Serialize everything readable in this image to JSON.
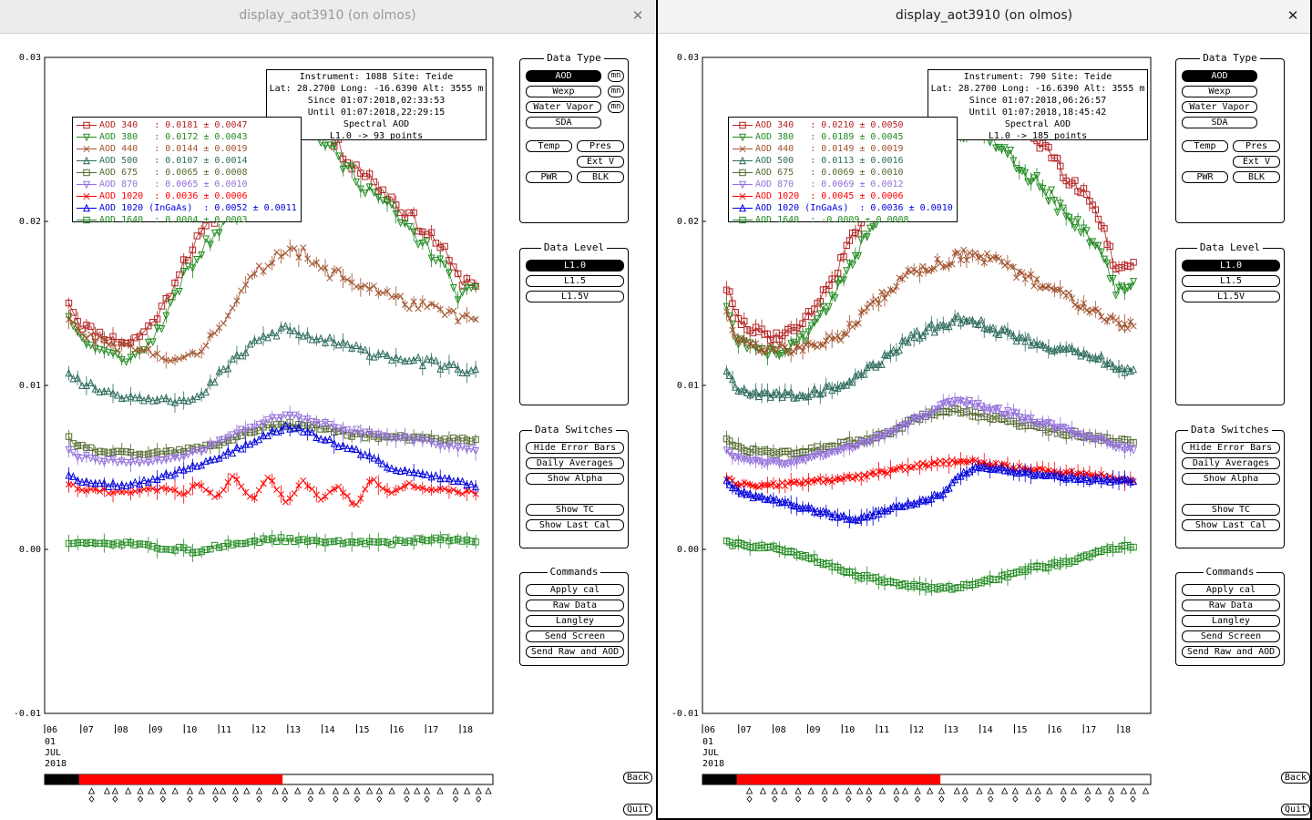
{
  "windows": [
    {
      "id": "left",
      "title": "display_aot3910 (on olmos)",
      "info": {
        "line1": "Instrument: 1088 Site: Teide",
        "line2": "Lat: 28.2700 Long: -16.6390 Alt: 3555 m",
        "line3": "Since 01:07:2018,02:33:53",
        "line4": "Until 01:07:2018,22:29:15",
        "line5": "Spectral AOD",
        "line6": "L1.0 -> 93 points"
      },
      "legend": [
        {
          "label": "AOD 340   : 0.0181 ± 0.0047",
          "color": "#b22222",
          "marker": "square"
        },
        {
          "label": "AOD 380   : 0.0172 ± 0.0043",
          "color": "#228b22",
          "marker": "tri-down"
        },
        {
          "label": "AOD 440   : 0.0144 ± 0.0019",
          "color": "#a0522d",
          "marker": "x"
        },
        {
          "label": "AOD 500   : 0.0107 ± 0.0014",
          "color": "#2e6b5e",
          "marker": "tri-up"
        },
        {
          "label": "AOD 675   : 0.0065 ± 0.0008",
          "color": "#556b2f",
          "marker": "square"
        },
        {
          "label": "AOD 870   : 0.0065 ± 0.0010",
          "color": "#9370db",
          "marker": "tri-down"
        },
        {
          "label": "AOD 1020  : 0.0036 ± 0.0006",
          "color": "#ff0000",
          "marker": "x"
        },
        {
          "label": "AOD 1020 (InGaAs)  : 0.0052 ± 0.0011",
          "color": "#0000dd",
          "marker": "tri-up"
        },
        {
          "label": "AOD 1640  : 0.0004 ± 0.0003",
          "color": "#228b22",
          "marker": "square"
        }
      ]
    },
    {
      "id": "right",
      "title": "display_aot3910 (on olmos)",
      "info": {
        "line1": "Instrument: 790 Site: Teide",
        "line2": "Lat: 28.2700 Long: -16.6390 Alt: 3555 m",
        "line3": "Since 01:07:2018,06:26:57",
        "line4": "Until 01:07:2018,18:45:42",
        "line5": "Spectral AOD",
        "line6": "L1.0 -> 185 points"
      },
      "legend": [
        {
          "label": "AOD 340   : 0.0210 ± 0.0050",
          "color": "#b22222",
          "marker": "square"
        },
        {
          "label": "AOD 380   : 0.0189 ± 0.0045",
          "color": "#228b22",
          "marker": "tri-down"
        },
        {
          "label": "AOD 440   : 0.0149 ± 0.0019",
          "color": "#a0522d",
          "marker": "x"
        },
        {
          "label": "AOD 500   : 0.0113 ± 0.0016",
          "color": "#2e6b5e",
          "marker": "tri-up"
        },
        {
          "label": "AOD 675   : 0.0069 ± 0.0010",
          "color": "#556b2f",
          "marker": "square"
        },
        {
          "label": "AOD 870   : 0.0069 ± 0.0012",
          "color": "#9370db",
          "marker": "tri-down"
        },
        {
          "label": "AOD 1020  : 0.0045 ± 0.0006",
          "color": "#ff0000",
          "marker": "x"
        },
        {
          "label": "AOD 1020 (InGaAs)  : 0.0036 ± 0.0010",
          "color": "#0000dd",
          "marker": "tri-up"
        },
        {
          "label": "AOD 1640  : -0.0009 ± 0.0008",
          "color": "#228b22",
          "marker": "square"
        }
      ]
    }
  ],
  "axes": {
    "y_ticks": [
      "0.03",
      "0.02",
      "0.01",
      "0.00",
      "-0.01"
    ],
    "ylim": [
      -0.01,
      0.03
    ],
    "x_ticks_left": [
      "06",
      "07",
      "08",
      "09",
      "10",
      "11",
      "12",
      "13",
      "14",
      "15",
      "16",
      "17",
      "18"
    ],
    "x_ticks_right": [
      "06",
      "07",
      "08",
      "09",
      "10",
      "11",
      "12",
      "13",
      "14",
      "15",
      "16",
      "17",
      "18"
    ],
    "date_label": [
      "01",
      "JUL",
      "2018"
    ]
  },
  "panels": {
    "data_type": {
      "title": "Data Type",
      "buttons": [
        "AOD",
        "Wexp",
        "Water Vapor",
        "SDA",
        "Temp",
        "Pres",
        "Ext V",
        "PWR",
        "BLK"
      ],
      "mini": "mn",
      "selected": "AOD"
    },
    "data_level": {
      "title": "Data Level",
      "buttons": [
        "L1.0",
        "L1.5",
        "L1.5V"
      ],
      "selected": "L1.0"
    },
    "data_switches": {
      "title": "Data Switches",
      "buttons": [
        "Hide Error Bars",
        "Daily Averages",
        "Show Alpha",
        "Show TC",
        "Show Last Cal"
      ]
    },
    "commands": {
      "title": "Commands",
      "buttons": [
        "Apply cal",
        "Raw Data",
        "Langley",
        "Send Screen",
        "Send Raw and AOD"
      ]
    },
    "back_label": "Back",
    "quit_label": "Quit"
  },
  "chart_data": [
    {
      "type": "scatter",
      "title": "Spectral AOD",
      "xlabel": "",
      "ylabel": "",
      "ylim": [
        -0.01,
        0.03
      ],
      "x_hours": [
        6.7,
        7.0,
        7.5,
        8.0,
        8.5,
        9.0,
        9.5,
        10.0,
        10.5,
        11.0,
        11.5,
        12.0,
        12.5,
        13.0,
        13.5,
        14.0,
        14.5,
        15.0,
        15.5,
        16.0,
        16.5,
        17.0,
        17.5,
        18.0,
        18.5
      ],
      "series": [
        {
          "name": "AOD 340",
          "color": "#b22222",
          "values": [
            0.0152,
            0.0138,
            0.0132,
            0.0128,
            0.0126,
            0.0135,
            0.015,
            0.0175,
            0.019,
            0.0205,
            0.0215,
            0.0225,
            0.0235,
            0.0255,
            0.0265,
            0.026,
            0.0245,
            0.0235,
            0.0225,
            0.0215,
            0.0205,
            0.0195,
            0.0185,
            0.0165,
            0.0163
          ]
        },
        {
          "name": "AOD 380",
          "color": "#228b22",
          "values": [
            0.0142,
            0.013,
            0.0122,
            0.0118,
            0.0116,
            0.0125,
            0.014,
            0.0165,
            0.018,
            0.0195,
            0.0205,
            0.0218,
            0.023,
            0.0248,
            0.0258,
            0.0252,
            0.0238,
            0.0228,
            0.0218,
            0.0208,
            0.0196,
            0.0186,
            0.0175,
            0.0155,
            0.0157
          ]
        },
        {
          "name": "AOD 440",
          "color": "#a0522d",
          "values": [
            0.014,
            0.0132,
            0.0128,
            0.0124,
            0.0122,
            0.012,
            0.0118,
            0.0115,
            0.012,
            0.0135,
            0.015,
            0.0165,
            0.0175,
            0.0185,
            0.018,
            0.017,
            0.0168,
            0.0162,
            0.016,
            0.0155,
            0.015,
            0.0148,
            0.0145,
            0.0142,
            0.014
          ]
        },
        {
          "name": "AOD 500",
          "color": "#2e6b5e",
          "values": [
            0.0108,
            0.0102,
            0.0098,
            0.0095,
            0.0093,
            0.0092,
            0.0093,
            0.009,
            0.0092,
            0.0105,
            0.0115,
            0.0125,
            0.013,
            0.0135,
            0.013,
            0.0128,
            0.0125,
            0.0122,
            0.012,
            0.0118,
            0.0116,
            0.0114,
            0.0112,
            0.011,
            0.0108
          ]
        },
        {
          "name": "AOD 675",
          "color": "#556b2f",
          "values": [
            0.0068,
            0.0063,
            0.006,
            0.0059,
            0.0058,
            0.0058,
            0.0059,
            0.006,
            0.0062,
            0.0064,
            0.0068,
            0.0072,
            0.0075,
            0.0076,
            0.0075,
            0.0074,
            0.0072,
            0.007,
            0.0069,
            0.0068,
            0.0068,
            0.0067,
            0.0067,
            0.0067,
            0.0066
          ]
        },
        {
          "name": "AOD 870",
          "color": "#9370db",
          "values": [
            0.006,
            0.0057,
            0.0055,
            0.0054,
            0.0053,
            0.0053,
            0.0055,
            0.0057,
            0.006,
            0.0065,
            0.007,
            0.0075,
            0.0078,
            0.0083,
            0.008,
            0.0077,
            0.0074,
            0.0072,
            0.007,
            0.0069,
            0.0068,
            0.0066,
            0.0064,
            0.0062,
            0.006
          ]
        },
        {
          "name": "AOD 1020",
          "color": "#ff0000",
          "values": [
            0.004,
            0.0037,
            0.0036,
            0.0035,
            0.0035,
            0.0036,
            0.0038,
            0.0034,
            0.004,
            0.0032,
            0.0045,
            0.003,
            0.0045,
            0.0028,
            0.0042,
            0.003,
            0.004,
            0.0025,
            0.0043,
            0.0035,
            0.004,
            0.0036,
            0.0037,
            0.0035,
            0.0034
          ]
        },
        {
          "name": "AOD 1020 (InGaAs)",
          "color": "#0000dd",
          "values": [
            0.0044,
            0.0042,
            0.004,
            0.0039,
            0.004,
            0.0042,
            0.0045,
            0.0048,
            0.0052,
            0.0056,
            0.006,
            0.0066,
            0.007,
            0.0075,
            0.0072,
            0.0068,
            0.0064,
            0.006,
            0.0055,
            0.005,
            0.0047,
            0.0046,
            0.0044,
            0.0041,
            0.0038
          ]
        },
        {
          "name": "AOD 1640",
          "color": "#228b22",
          "values": [
            0.0004,
            0.0004,
            0.0003,
            0.0004,
            0.0003,
            0.0002,
            0.0001,
            0.0,
            -0.0002,
            0.0002,
            0.0003,
            0.0005,
            0.0006,
            0.0006,
            0.0005,
            0.0004,
            0.0005,
            0.0004,
            0.0005,
            0.0004,
            0.0005,
            0.0006,
            0.0006,
            0.0006,
            0.0005
          ]
        }
      ]
    },
    {
      "type": "scatter",
      "title": "Spectral AOD",
      "xlabel": "",
      "ylabel": "",
      "ylim": [
        -0.01,
        0.03
      ],
      "x_hours": [
        6.7,
        7.0,
        7.5,
        8.0,
        8.5,
        9.0,
        9.5,
        10.0,
        10.5,
        11.0,
        11.5,
        12.0,
        12.5,
        13.0,
        13.5,
        14.0,
        14.5,
        15.0,
        15.5,
        16.0,
        16.5,
        17.0,
        17.5,
        18.0,
        18.5
      ],
      "series": [
        {
          "name": "AOD 340",
          "color": "#b22222",
          "values": [
            0.016,
            0.014,
            0.0133,
            0.013,
            0.0132,
            0.014,
            0.0155,
            0.0175,
            0.0195,
            0.021,
            0.0222,
            0.0235,
            0.0245,
            0.026,
            0.0275,
            0.028,
            0.0275,
            0.0265,
            0.0255,
            0.0245,
            0.023,
            0.022,
            0.0205,
            0.0168,
            0.0172
          ]
        },
        {
          "name": "AOD 380",
          "color": "#228b22",
          "values": [
            0.0148,
            0.0128,
            0.0122,
            0.012,
            0.0122,
            0.013,
            0.0145,
            0.0162,
            0.0182,
            0.0198,
            0.021,
            0.0222,
            0.0232,
            0.0248,
            0.0256,
            0.0258,
            0.025,
            0.024,
            0.0228,
            0.0218,
            0.0205,
            0.0195,
            0.0185,
            0.0158,
            0.016
          ]
        },
        {
          "name": "AOD 440",
          "color": "#a0522d",
          "values": [
            0.0145,
            0.0128,
            0.0124,
            0.0122,
            0.0122,
            0.0123,
            0.0126,
            0.013,
            0.014,
            0.015,
            0.016,
            0.0168,
            0.0172,
            0.0175,
            0.018,
            0.0178,
            0.0175,
            0.017,
            0.0165,
            0.016,
            0.0155,
            0.015,
            0.0145,
            0.0138,
            0.0136
          ]
        },
        {
          "name": "AOD 500",
          "color": "#2e6b5e",
          "values": [
            0.011,
            0.0098,
            0.0095,
            0.0094,
            0.0094,
            0.0095,
            0.0097,
            0.01,
            0.0105,
            0.0112,
            0.012,
            0.0128,
            0.0133,
            0.0138,
            0.014,
            0.0138,
            0.0134,
            0.013,
            0.0127,
            0.0124,
            0.0122,
            0.012,
            0.0117,
            0.011,
            0.0108
          ]
        },
        {
          "name": "AOD 675",
          "color": "#556b2f",
          "values": [
            0.0068,
            0.0062,
            0.006,
            0.0059,
            0.0059,
            0.006,
            0.0062,
            0.0064,
            0.0066,
            0.0068,
            0.0072,
            0.0078,
            0.0082,
            0.0085,
            0.0084,
            0.0082,
            0.008,
            0.0077,
            0.0075,
            0.0073,
            0.0071,
            0.007,
            0.0068,
            0.0066,
            0.0066
          ]
        },
        {
          "name": "AOD 870",
          "color": "#9370db",
          "values": [
            0.006,
            0.0056,
            0.0054,
            0.0053,
            0.0053,
            0.0055,
            0.0058,
            0.0061,
            0.0064,
            0.0068,
            0.0072,
            0.0077,
            0.0082,
            0.0088,
            0.009,
            0.0088,
            0.0085,
            0.0082,
            0.0079,
            0.0076,
            0.0073,
            0.007,
            0.0067,
            0.0063,
            0.006
          ]
        },
        {
          "name": "AOD 1020",
          "color": "#ff0000",
          "values": [
            0.0043,
            0.004,
            0.0039,
            0.0039,
            0.004,
            0.0041,
            0.0042,
            0.0043,
            0.0044,
            0.0046,
            0.0048,
            0.005,
            0.0052,
            0.0053,
            0.0054,
            0.0053,
            0.0052,
            0.005,
            0.0049,
            0.0048,
            0.0047,
            0.0046,
            0.0045,
            0.0043,
            0.0042
          ]
        },
        {
          "name": "AOD 1020 (InGaAs)",
          "color": "#0000dd",
          "values": [
            0.0042,
            0.0036,
            0.0032,
            0.003,
            0.0028,
            0.0025,
            0.0022,
            0.002,
            0.0018,
            0.0022,
            0.0025,
            0.0028,
            0.003,
            0.0035,
            0.0045,
            0.005,
            0.005,
            0.0048,
            0.0046,
            0.0045,
            0.0044,
            0.0043,
            0.0042,
            0.0042,
            0.0042
          ]
        },
        {
          "name": "AOD 1640",
          "color": "#228b22",
          "values": [
            0.0004,
            0.0003,
            0.0002,
            0.0001,
            -0.0001,
            -0.0004,
            -0.0008,
            -0.0012,
            -0.0016,
            -0.0018,
            -0.002,
            -0.0022,
            -0.0023,
            -0.0024,
            -0.0023,
            -0.002,
            -0.0018,
            -0.0015,
            -0.0012,
            -0.001,
            -0.0008,
            -0.0005,
            -0.0002,
            0.0001,
            0.0002
          ]
        }
      ]
    }
  ]
}
